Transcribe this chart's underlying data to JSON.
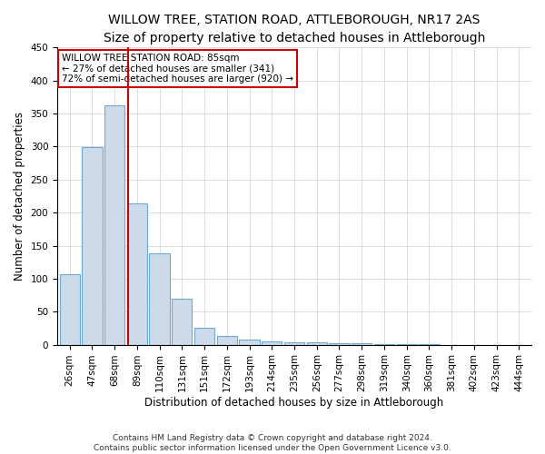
{
  "title": "WILLOW TREE, STATION ROAD, ATTLEBOROUGH, NR17 2AS",
  "subtitle": "Size of property relative to detached houses in Attleborough",
  "xlabel": "Distribution of detached houses by size in Attleborough",
  "ylabel": "Number of detached properties",
  "categories": [
    "26sqm",
    "47sqm",
    "68sqm",
    "89sqm",
    "110sqm",
    "131sqm",
    "151sqm",
    "172sqm",
    "193sqm",
    "214sqm",
    "235sqm",
    "256sqm",
    "277sqm",
    "298sqm",
    "319sqm",
    "340sqm",
    "360sqm",
    "381sqm",
    "402sqm",
    "423sqm",
    "444sqm"
  ],
  "values": [
    107,
    299,
    362,
    214,
    139,
    69,
    25,
    13,
    8,
    5,
    4,
    3,
    2,
    2,
    1,
    1,
    1,
    0,
    0,
    0,
    0
  ],
  "bar_color": "#ccdaea",
  "bar_edge_color": "#6aaad4",
  "property_line_x": 2.6,
  "property_line_color": "#cc0000",
  "annotation_text": "WILLOW TREE STATION ROAD: 85sqm\n← 27% of detached houses are smaller (341)\n72% of semi-detached houses are larger (920) →",
  "annotation_box_color": "#ffffff",
  "annotation_box_edge_color": "#cc0000",
  "ylim": [
    0,
    450
  ],
  "footnote": "Contains HM Land Registry data © Crown copyright and database right 2024.\nContains public sector information licensed under the Open Government Licence v3.0.",
  "title_fontsize": 10,
  "xlabel_fontsize": 8.5,
  "ylabel_fontsize": 8.5,
  "tick_fontsize": 7.5,
  "annotation_fontsize": 7.5,
  "footnote_fontsize": 6.5
}
